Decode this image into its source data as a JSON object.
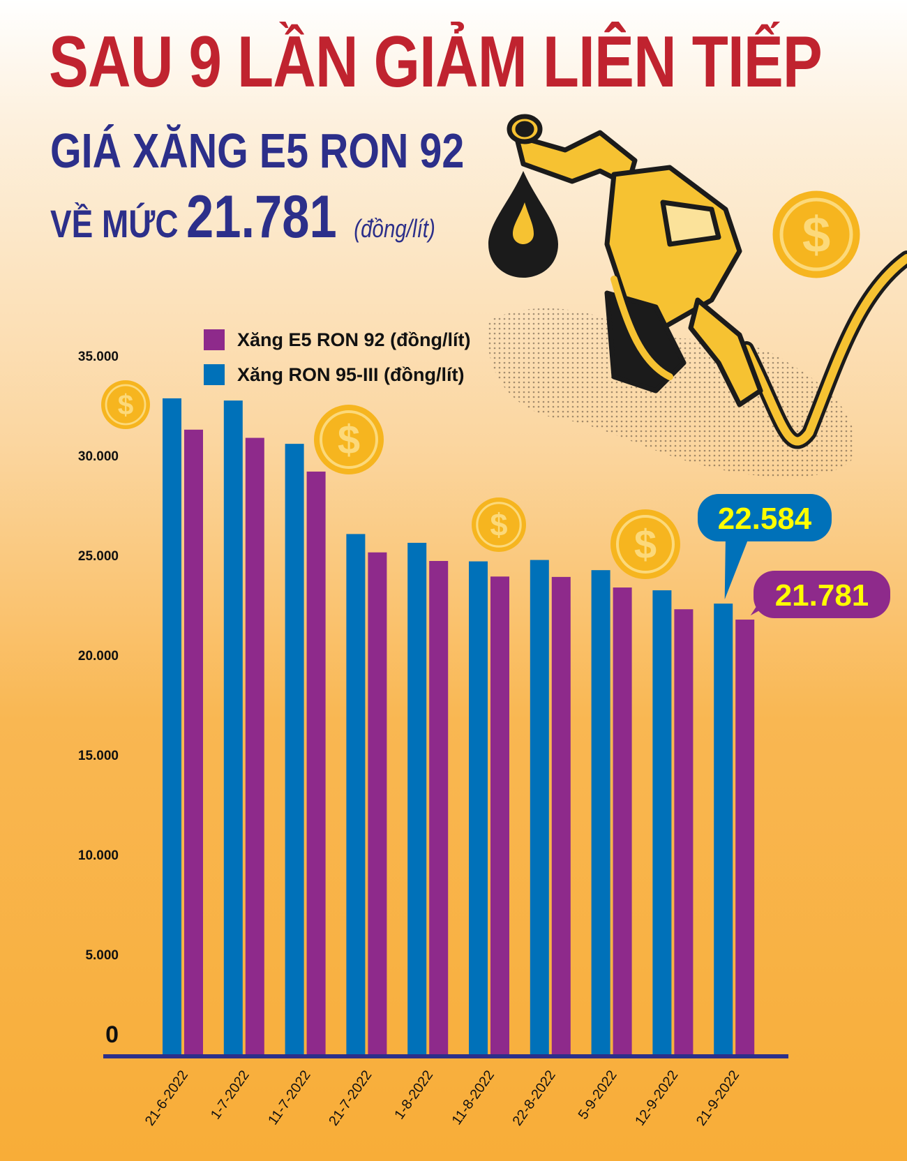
{
  "header": {
    "title": "SAU 9 LẦN GIẢM LIÊN TIẾP",
    "subtitle_line1": "GIÁ XĂNG E5 RON 92",
    "subtitle_prefix": "VỀ MỨC",
    "subtitle_price": "21.781",
    "subtitle_unit": "(đồng/lít)"
  },
  "colors": {
    "title": "#c0232f",
    "subtitle": "#2c2f8a",
    "e5": "#8e2a8b",
    "ron95": "#0071b9",
    "callout_text": "#ffff00",
    "axis": "#2c2f8a",
    "coin": "#f6b51f"
  },
  "icons": [
    "fuel-nozzle-icon",
    "oil-drop-icon",
    "dollar-coin-icon"
  ],
  "chart_data": {
    "type": "bar",
    "categories": [
      "21-6-2022",
      "1-7-2022",
      "11-7-2022",
      "21-7-2022",
      "1-8-2022",
      "11-8-2022",
      "22-8-2022",
      "5-9-2022",
      "12-9-2022",
      "21-9-2022"
    ],
    "series": [
      {
        "name": "Xăng RON 95-III (đồng/lít)",
        "color": "#0071b9",
        "values": [
          32870,
          32760,
          30590,
          26070,
          25630,
          24700,
          24770,
          24260,
          23250,
          22584
        ]
      },
      {
        "name": "Xăng E5 RON 92 (đồng/lít)",
        "color": "#8e2a8b",
        "values": [
          31300,
          30890,
          29200,
          25150,
          24720,
          23940,
          23920,
          23390,
          22300,
          21781
        ]
      }
    ],
    "legend": [
      "Xăng E5 RON 92 (đồng/lít)",
      "Xăng RON 95-III (đồng/lít)"
    ],
    "legend_placement": "top-left",
    "yticks": [
      "0",
      "5.000",
      "10.000",
      "15.000",
      "20.000",
      "25.000",
      "30.000",
      "35.000"
    ],
    "ylim": [
      0,
      35000
    ],
    "grid": false,
    "callouts": [
      {
        "series": "Xăng RON 95-III (đồng/lít)",
        "category": "21-9-2022",
        "label": "22.584"
      },
      {
        "series": "Xăng E5 RON 92 (đồng/lít)",
        "category": "21-9-2022",
        "label": "21.781"
      }
    ]
  }
}
